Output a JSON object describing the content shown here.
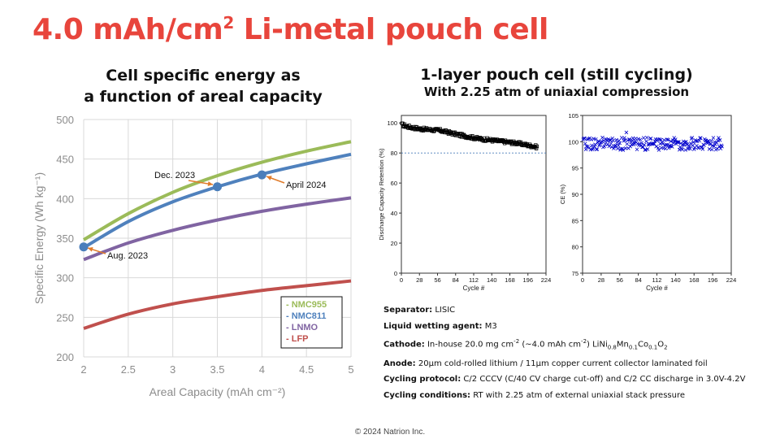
{
  "title": {
    "text": "4.0 mAh/cm",
    "sup": "2",
    "rest": " Li-metal pouch cell"
  },
  "left_heading": {
    "line1": "Cell specific energy as",
    "line2": "a function of areal capacity"
  },
  "right_heading": {
    "line1": "1-layer pouch cell (still cycling)",
    "line2": "With 2.25 atm of uniaxial compression"
  },
  "chart_data": [
    {
      "type": "line",
      "title": "Cell specific energy as a function of areal capacity",
      "xlabel": "Areal Capacity (mAh cm⁻²)",
      "ylabel": "Specific Energy (Wh kg⁻¹)",
      "xlim": [
        2,
        5
      ],
      "ylim": [
        200,
        500
      ],
      "x_ticks": [
        "2",
        "2.5",
        "3",
        "3.5",
        "4",
        "4.5",
        "5"
      ],
      "y_ticks": [
        "200",
        "250",
        "300",
        "350",
        "400",
        "450",
        "500"
      ],
      "x": [
        2,
        2.5,
        3,
        3.5,
        4,
        4.5,
        5
      ],
      "series": [
        {
          "name": "- NMC955",
          "color": "#9bbb59",
          "values": [
            348,
            381,
            408,
            429,
            446,
            460,
            472
          ]
        },
        {
          "name": "- NMC811",
          "color": "#4f81bd",
          "values": [
            338,
            371,
            396,
            415,
            431,
            444,
            456
          ]
        },
        {
          "name": "- LNMO",
          "color": "#8064a2",
          "values": [
            323,
            344,
            360,
            373,
            384,
            393,
            401
          ]
        },
        {
          "name": "- LFP",
          "color": "#c0504d",
          "values": [
            236,
            254,
            267,
            276,
            284,
            290,
            296
          ]
        }
      ],
      "milestones": [
        {
          "label": "Aug. 2023",
          "x": 2.0,
          "y": 339
        },
        {
          "label": "Dec. 2023",
          "x": 3.5,
          "y": 415
        },
        {
          "label": "April 2024",
          "x": 4.0,
          "y": 430
        }
      ],
      "legend_position": "bottom-right"
    },
    {
      "type": "scatter",
      "ylabel": "Discharge Capacity Retention (%)",
      "xlabel": "Cycle #",
      "xlim": [
        0,
        224
      ],
      "ylim": [
        0,
        105
      ],
      "x_ticks": [
        "0",
        "28",
        "56",
        "84",
        "112",
        "140",
        "168",
        "196",
        "224"
      ],
      "y_ticks": [
        "0",
        "20",
        "40",
        "60",
        "80",
        "100"
      ],
      "reference_line": 80,
      "cycles": 210,
      "trend": [
        {
          "cycle": 0,
          "value": 99
        },
        {
          "cycle": 10,
          "value": 97.5
        },
        {
          "cycle": 30,
          "value": 96
        },
        {
          "cycle": 60,
          "value": 95
        },
        {
          "cycle": 90,
          "value": 92
        },
        {
          "cycle": 120,
          "value": 89.5
        },
        {
          "cycle": 150,
          "value": 88
        },
        {
          "cycle": 180,
          "value": 86.5
        },
        {
          "cycle": 210,
          "value": 84
        }
      ],
      "color": "#000000"
    },
    {
      "type": "scatter",
      "ylabel": "CE (%)",
      "xlabel": "Cycle #",
      "xlim": [
        0,
        224
      ],
      "ylim": [
        75,
        105
      ],
      "x_ticks": [
        "0",
        "28",
        "56",
        "84",
        "112",
        "140",
        "168",
        "196",
        "224"
      ],
      "y_ticks": [
        "75",
        "80",
        "85",
        "90",
        "95",
        "100",
        "105"
      ],
      "mean": 99.6,
      "cycles": 210,
      "color": "#0000cc"
    }
  ],
  "specs": [
    {
      "label": "Separator:",
      "text": "LISIC"
    },
    {
      "label": "Liquid wetting agent:",
      "text": "M3"
    },
    {
      "label": "Cathode:",
      "text": "In-house 20.0 mg cm",
      "cathode": true
    },
    {
      "label": "Anode:",
      "text": "20μm cold-rolled lithium / 11μm copper current collector laminated foil"
    },
    {
      "label": "Cycling protocol:",
      "text": "C/2 CCCV (C/40 CV charge cut-off) and C/2 CC discharge in 3.0V-4.2V"
    },
    {
      "label": "Cycling conditions:",
      "text": "RT with 2.25 atm of external uniaxial stack pressure"
    }
  ],
  "cathode_detail": {
    "sup1": "-2",
    "mid": " (~4.0 mAh cm",
    "sup2": "-2",
    "mid2": ") LiNi",
    "s1": "0.8",
    "m1": "Mn",
    "s2": "0.1",
    "m2": "Co",
    "s3": "0.1",
    "m3": "O",
    "s4": "2"
  },
  "footer": "© 2024 Natrion Inc."
}
